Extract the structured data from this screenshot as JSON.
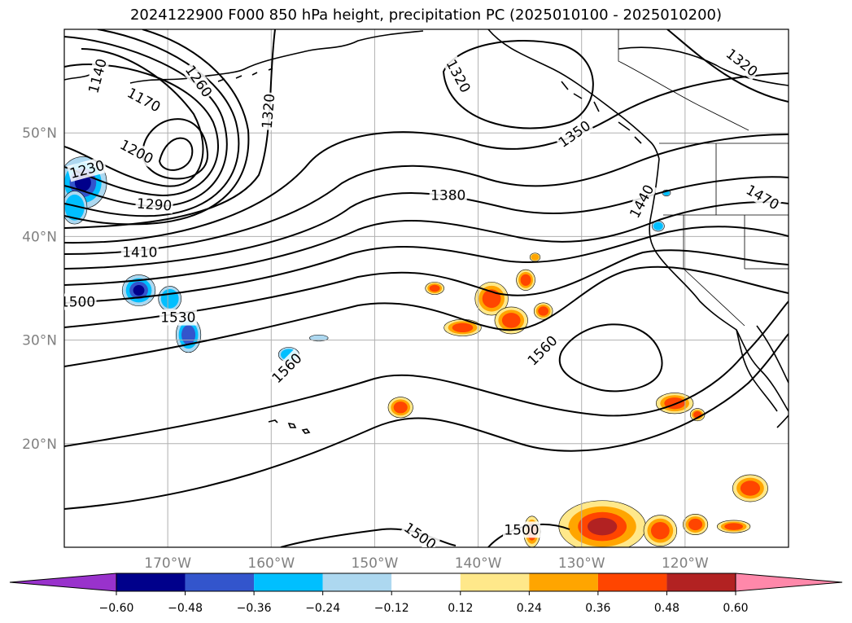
{
  "title": "2024122900 F000 850 hPa height, precipitation PC (2025010100 - 2025010200)",
  "map": {
    "lon_range": [
      -180,
      -110
    ],
    "lat_range": [
      10,
      60
    ],
    "lon_ticks": [
      {
        "lon": -170,
        "label": "170°W"
      },
      {
        "lon": -160,
        "label": "160°W"
      },
      {
        "lon": -150,
        "label": "150°W"
      },
      {
        "lon": -140,
        "label": "140°W"
      },
      {
        "lon": -130,
        "label": "130°W"
      },
      {
        "lon": -120,
        "label": "120°W"
      }
    ],
    "lat_ticks": [
      {
        "lat": 20,
        "label": "20°N"
      },
      {
        "lat": 30,
        "label": "30°N"
      },
      {
        "lat": 40,
        "label": "40°N"
      },
      {
        "lat": 50,
        "label": "50°N"
      }
    ],
    "grid": true
  },
  "contours": {
    "variable": "850 hPa height",
    "interval": 30,
    "line_color": "#000000",
    "labels": [
      {
        "text": "1140",
        "lon": -176.8,
        "lat": 55.5,
        "rot": -75
      },
      {
        "text": "1170",
        "lon": -172.3,
        "lat": 53.2,
        "rot": 28
      },
      {
        "text": "1260",
        "lon": -167.0,
        "lat": 55.0,
        "rot": 55
      },
      {
        "text": "1320",
        "lon": -160.3,
        "lat": 52.1,
        "rot": -85
      },
      {
        "text": "1320",
        "lon": -141.9,
        "lat": 55.5,
        "rot": 62
      },
      {
        "text": "1320",
        "lon": -114.5,
        "lat": 56.8,
        "rot": 38
      },
      {
        "text": "1200",
        "lon": -173.0,
        "lat": 48.2,
        "rot": 28
      },
      {
        "text": "1230",
        "lon": -177.8,
        "lat": 46.5,
        "rot": -15
      },
      {
        "text": "1290",
        "lon": -171.3,
        "lat": 43.1,
        "rot": 4
      },
      {
        "text": "1350",
        "lon": -130.7,
        "lat": 49.9,
        "rot": -35
      },
      {
        "text": "1380",
        "lon": -142.9,
        "lat": 44.0,
        "rot": 0
      },
      {
        "text": "1440",
        "lon": -124.2,
        "lat": 43.4,
        "rot": -62
      },
      {
        "text": "1470",
        "lon": -112.5,
        "lat": 43.8,
        "rot": 30
      },
      {
        "text": "1410",
        "lon": -172.7,
        "lat": 38.5,
        "rot": 0
      },
      {
        "text": "1500",
        "lon": -178.7,
        "lat": 33.7,
        "rot": 0
      },
      {
        "text": "1530",
        "lon": -169.0,
        "lat": 32.2,
        "rot": 0
      },
      {
        "text": "1560",
        "lon": -158.5,
        "lat": 27.3,
        "rot": -45
      },
      {
        "text": "1560",
        "lon": -133.8,
        "lat": 29.0,
        "rot": -45
      },
      {
        "text": "1500",
        "lon": -135.8,
        "lat": 11.7,
        "rot": 0
      },
      {
        "text": "1500",
        "lon": -145.6,
        "lat": 11.1,
        "rot": 35
      }
    ]
  },
  "precip_shading": {
    "variable": "precipitation PC",
    "regions": [
      {
        "lon": -178.2,
        "lat": 45.2,
        "rx": 2.3,
        "ry": 2.5,
        "value": -0.5
      },
      {
        "lon": -179.0,
        "lat": 42.8,
        "rx": 1.2,
        "ry": 1.6,
        "value": -0.3
      },
      {
        "lon": -172.8,
        "lat": 34.8,
        "rx": 1.6,
        "ry": 1.5,
        "value": -0.5
      },
      {
        "lon": -169.8,
        "lat": 34.0,
        "rx": 1.1,
        "ry": 1.2,
        "value": -0.3
      },
      {
        "lon": -168.0,
        "lat": 30.5,
        "rx": 1.2,
        "ry": 1.7,
        "value": -0.4
      },
      {
        "lon": -158.3,
        "lat": 28.6,
        "rx": 1.0,
        "ry": 0.7,
        "value": -0.3
      },
      {
        "lon": -155.4,
        "lat": 30.2,
        "rx": 0.9,
        "ry": 0.3,
        "value": -0.25
      },
      {
        "lon": -122.6,
        "lat": 41.0,
        "rx": 0.6,
        "ry": 0.5,
        "value": -0.3
      },
      {
        "lon": -121.8,
        "lat": 44.2,
        "rx": 0.4,
        "ry": 0.3,
        "value": -0.3
      },
      {
        "lon": -144.2,
        "lat": 35.0,
        "rx": 0.9,
        "ry": 0.6,
        "value": 0.4
      },
      {
        "lon": -141.5,
        "lat": 31.2,
        "rx": 1.8,
        "ry": 0.8,
        "value": 0.4
      },
      {
        "lon": -138.7,
        "lat": 34.0,
        "rx": 1.6,
        "ry": 1.6,
        "value": 0.45
      },
      {
        "lon": -136.8,
        "lat": 31.9,
        "rx": 1.6,
        "ry": 1.3,
        "value": 0.42
      },
      {
        "lon": -135.4,
        "lat": 35.8,
        "rx": 0.9,
        "ry": 1.0,
        "value": 0.4
      },
      {
        "lon": -133.7,
        "lat": 32.8,
        "rx": 0.9,
        "ry": 0.8,
        "value": 0.38
      },
      {
        "lon": -134.5,
        "lat": 38.0,
        "rx": 0.5,
        "ry": 0.4,
        "value": 0.35
      },
      {
        "lon": -147.5,
        "lat": 23.5,
        "rx": 1.2,
        "ry": 1.0,
        "value": 0.42
      },
      {
        "lon": -121.0,
        "lat": 23.9,
        "rx": 1.8,
        "ry": 1.0,
        "value": 0.4
      },
      {
        "lon": -118.8,
        "lat": 22.8,
        "rx": 0.7,
        "ry": 0.6,
        "value": 0.38
      },
      {
        "lon": -113.7,
        "lat": 15.7,
        "rx": 1.7,
        "ry": 1.3,
        "value": 0.42
      },
      {
        "lon": -115.3,
        "lat": 12.0,
        "rx": 1.6,
        "ry": 0.6,
        "value": 0.38
      },
      {
        "lon": -128.0,
        "lat": 12.0,
        "rx": 4.2,
        "ry": 2.5,
        "value": 0.5
      },
      {
        "lon": -122.4,
        "lat": 11.6,
        "rx": 1.6,
        "ry": 1.5,
        "value": 0.42
      },
      {
        "lon": -134.8,
        "lat": 11.5,
        "rx": 0.8,
        "ry": 1.5,
        "value": 0.4
      },
      {
        "lon": -119.0,
        "lat": 12.2,
        "rx": 1.2,
        "ry": 1.0,
        "value": 0.4
      }
    ]
  },
  "colorbar": {
    "levels": [
      -0.6,
      -0.48,
      -0.36,
      -0.24,
      -0.12,
      0.12,
      0.24,
      0.36,
      0.48,
      0.6
    ],
    "tick_labels": [
      "−0.60",
      "−0.48",
      "−0.36",
      "−0.24",
      "−0.12",
      "0.12",
      "0.24",
      "0.36",
      "0.48",
      "0.60"
    ],
    "colors": [
      "#9932cc",
      "#00008b",
      "#3355cc",
      "#00bfff",
      "#add8f0",
      "#ffffff",
      "#ffe88a",
      "#ffa500",
      "#ff4500",
      "#b22222",
      "#ff88aa"
    ],
    "extend": "both"
  }
}
